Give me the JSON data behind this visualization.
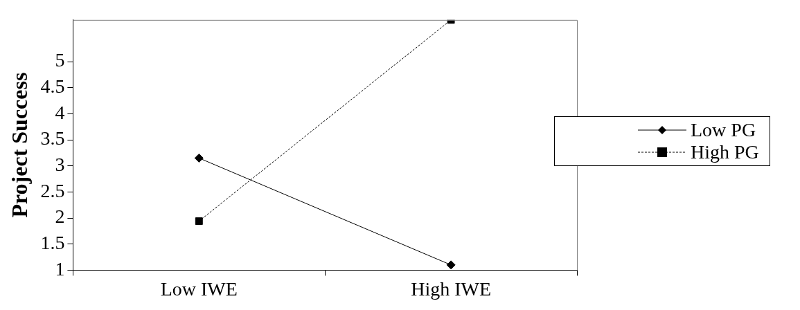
{
  "chart_data": {
    "type": "line",
    "ylabel": "Project Success",
    "categories": [
      "Low IWE",
      "High IWE"
    ],
    "series": [
      {
        "name": "Low PG",
        "color": "#000000",
        "values": [
          3.15,
          1.1
        ],
        "marker": "diamond",
        "line_style": "solid"
      },
      {
        "name": "High PG",
        "color": "#000000",
        "values": [
          1.94,
          5.8
        ],
        "marker": "square",
        "line_style": "dashed"
      }
    ],
    "ylim": [
      1,
      5.8
    ],
    "yticks": [
      1,
      1.5,
      2,
      2.5,
      3,
      3.5,
      4,
      4.5,
      5
    ],
    "grid": false,
    "legend": "right"
  }
}
